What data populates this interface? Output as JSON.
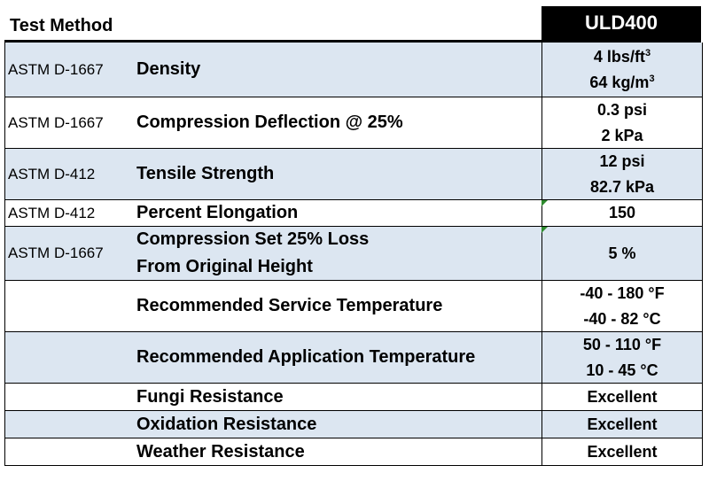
{
  "header": {
    "test_method_label": "Test Method",
    "product_name": "ULD400"
  },
  "rows": [
    {
      "method": "ASTM D-1667",
      "property": [
        "Density"
      ],
      "values": [
        [
          "4 lbs/ft",
          "3"
        ],
        [
          "64 kg/m",
          "3"
        ]
      ]
    },
    {
      "method": "ASTM D-1667",
      "property": [
        "Compression Deflection @ 25%"
      ],
      "values": [
        [
          "0.3 psi",
          ""
        ],
        [
          "2 kPa",
          ""
        ]
      ]
    },
    {
      "method": "ASTM D-412",
      "property": [
        "Tensile Strength"
      ],
      "values": [
        [
          "12 psi",
          ""
        ],
        [
          "82.7 kPa",
          ""
        ]
      ]
    },
    {
      "method": "ASTM D-412",
      "property": [
        "Percent Elongation"
      ],
      "values": [
        [
          "150",
          ""
        ]
      ]
    },
    {
      "method": "ASTM D-1667",
      "property": [
        "Compression Set 25% Loss",
        "From  Original Height"
      ],
      "values": [
        [
          "5 %",
          ""
        ]
      ]
    },
    {
      "method": "",
      "property": [
        "Recommended Service Temperature"
      ],
      "values": [
        [
          "-40 - 180 °F",
          ""
        ],
        [
          "-40 - 82 °C",
          ""
        ]
      ]
    },
    {
      "method": "",
      "property": [
        "Recommended Application Temperature"
      ],
      "values": [
        [
          "50 - 110 °F",
          ""
        ],
        [
          "10 - 45 °C",
          ""
        ]
      ]
    },
    {
      "method": "",
      "property": [
        "Fungi Resistance"
      ],
      "values": [
        [
          "Excellent",
          ""
        ]
      ]
    },
    {
      "method": "",
      "property": [
        "Oxidation Resistance"
      ],
      "values": [
        [
          "Excellent",
          ""
        ]
      ]
    },
    {
      "method": "",
      "property": [
        "Weather Resistance"
      ],
      "values": [
        [
          "Excellent",
          ""
        ]
      ]
    }
  ],
  "colors": {
    "shaded_row": "#dce6f1",
    "header_bg": "#000000",
    "cell_marker": "#2e8b2e"
  }
}
